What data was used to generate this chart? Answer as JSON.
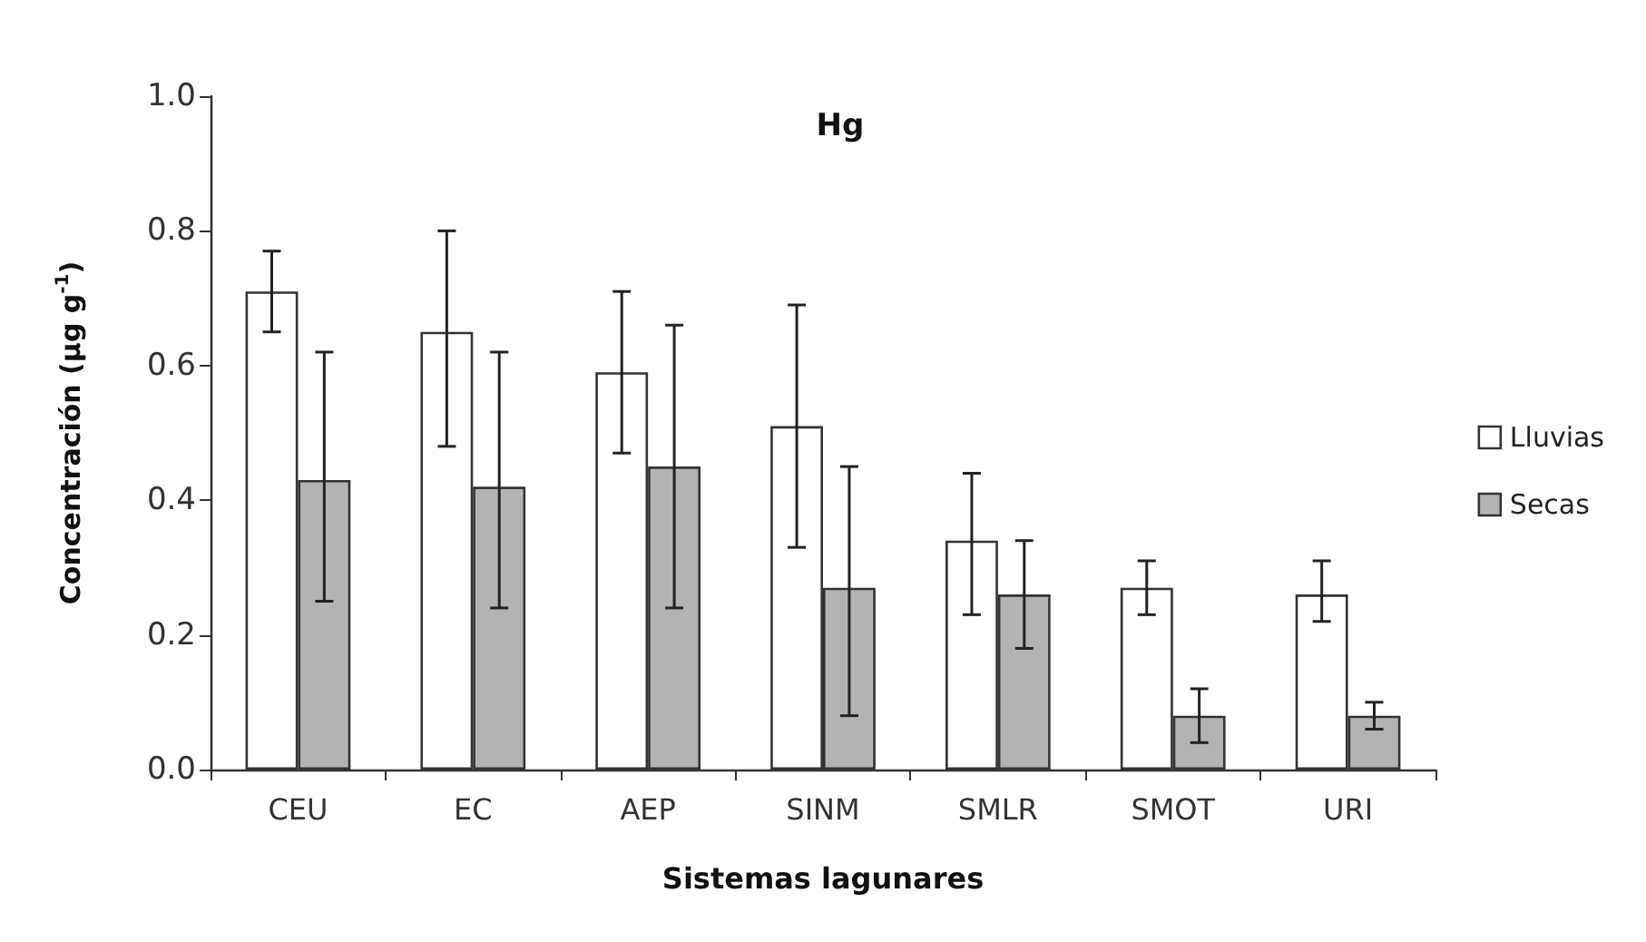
{
  "chart_data": {
    "type": "bar",
    "title": "Hg",
    "xlabel": "Sistemas lagunares",
    "ylabel": "Concentración (µg g$^{-1}$)",
    "categories": [
      "CEU",
      "EC",
      "AEP",
      "SINM",
      "SMLR",
      "SMOT",
      "URI"
    ],
    "series": [
      {
        "name": "Lluvias",
        "color": "#ffffff",
        "values": [
          0.71,
          0.65,
          0.59,
          0.51,
          0.34,
          0.27,
          0.26
        ],
        "errors": [
          [
            0.65,
            0.77
          ],
          [
            0.48,
            0.8
          ],
          [
            0.47,
            0.71
          ],
          [
            0.33,
            0.69
          ],
          [
            0.23,
            0.44
          ],
          [
            0.23,
            0.31
          ],
          [
            0.22,
            0.31
          ]
        ]
      },
      {
        "name": "Secas",
        "color": "#b3b3b3",
        "values": [
          0.43,
          0.42,
          0.45,
          0.27,
          0.26,
          0.08,
          0.08
        ],
        "errors": [
          [
            0.25,
            0.62
          ],
          [
            0.24,
            0.62
          ],
          [
            0.24,
            0.66
          ],
          [
            0.08,
            0.45
          ],
          [
            0.18,
            0.34
          ],
          [
            0.04,
            0.12
          ],
          [
            0.06,
            0.1
          ]
        ]
      }
    ],
    "ylim": [
      0,
      1
    ],
    "yticks": [
      {
        "value": 0,
        "label": "0.0"
      },
      {
        "value": 0.2,
        "label": "0.2"
      },
      {
        "value": 0.4,
        "label": "0.4"
      },
      {
        "value": 0.6,
        "label": "0.6"
      },
      {
        "value": 0.8,
        "label": "0.8"
      },
      {
        "value": 1,
        "label": "1.0"
      }
    ],
    "grid": false,
    "legend": "right"
  }
}
